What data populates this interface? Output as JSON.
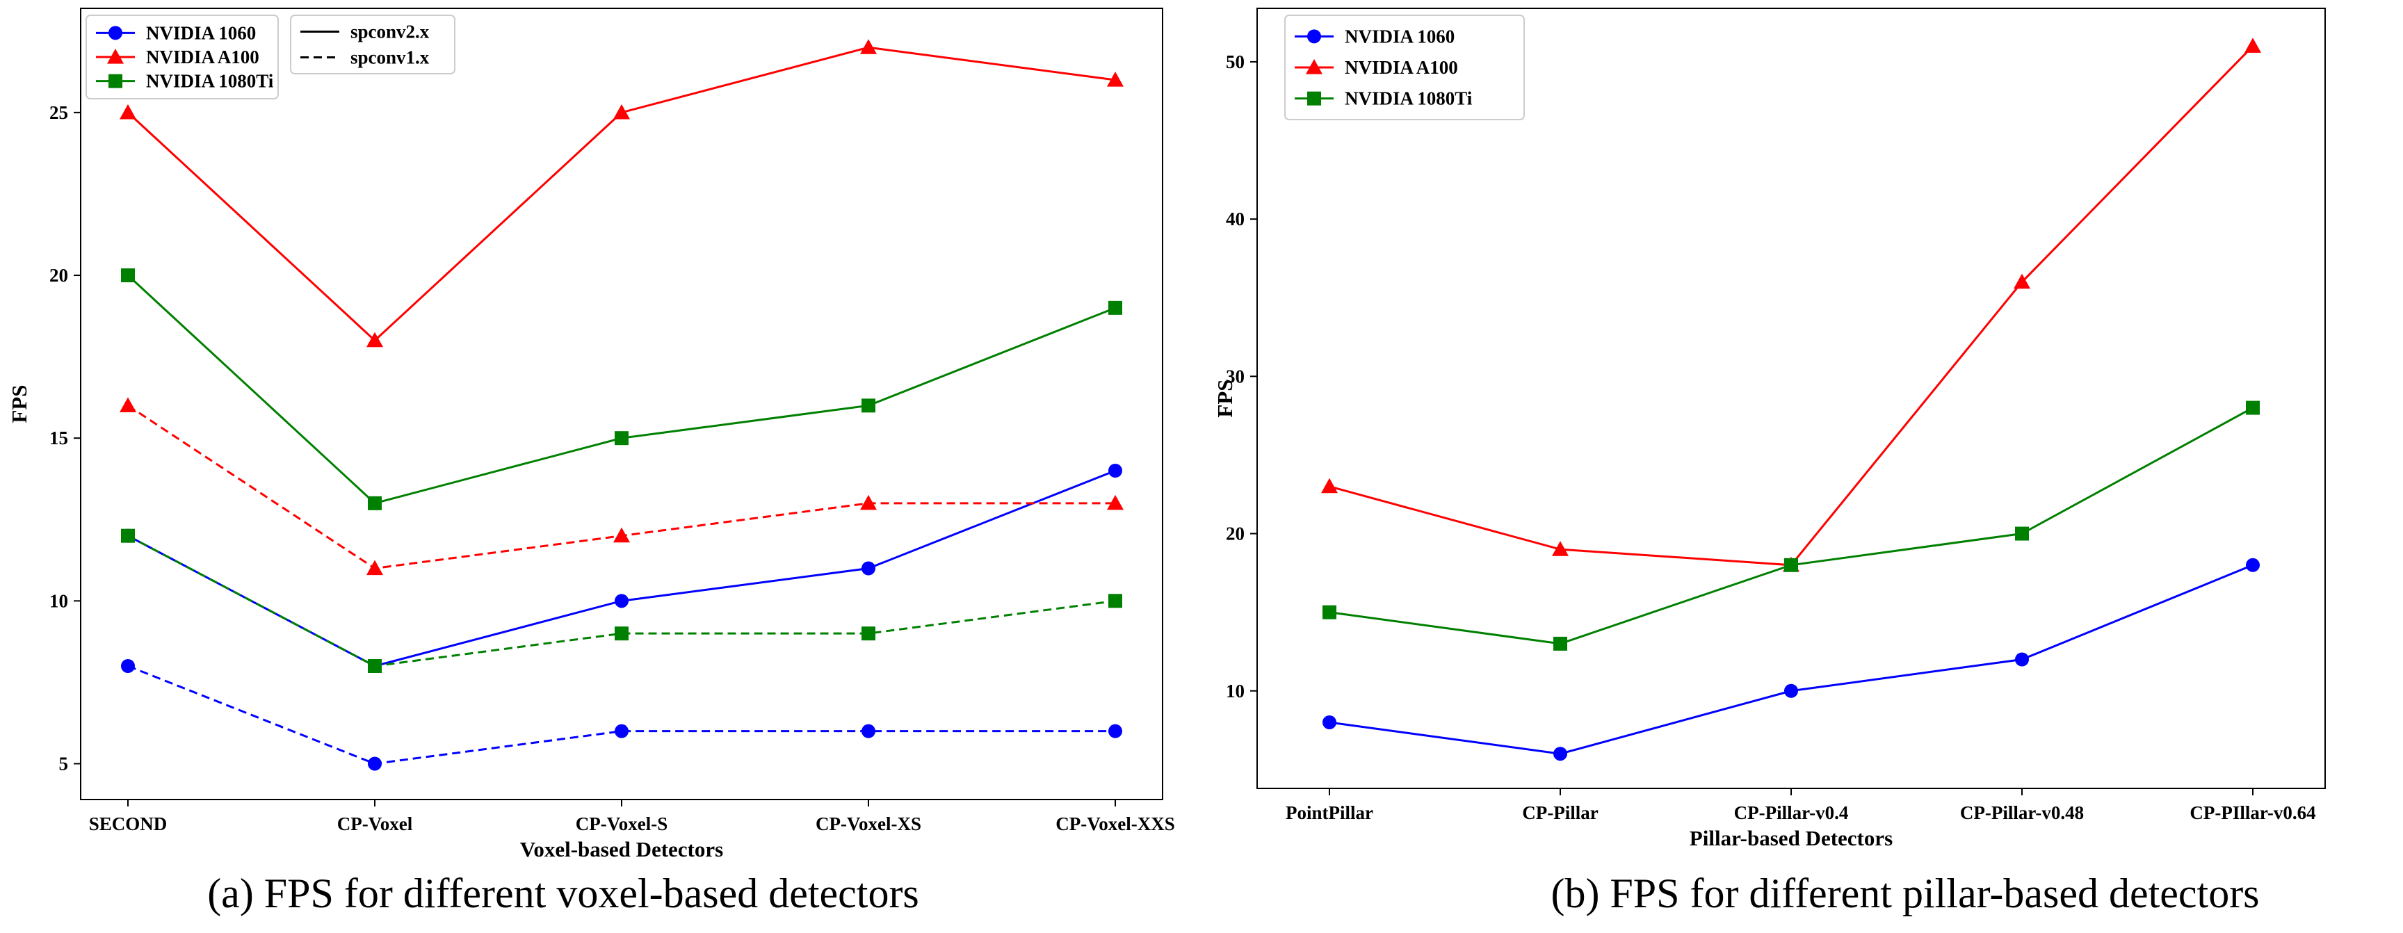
{
  "colors": {
    "series_a": "#0000ff",
    "series_b": "#ff0000",
    "series_c": "#008000"
  },
  "chart_data": [
    {
      "type": "line",
      "title": "",
      "caption": "(a) FPS for different voxel-based detectors",
      "xlabel": "Voxel-based Detectors",
      "ylabel": "FPS",
      "categories": [
        "SECOND",
        "CP-Voxel",
        "CP-Voxel-S",
        "CP-Voxel-XS",
        "CP-Voxel-XXS"
      ],
      "ylim": [
        3.9,
        28.2
      ],
      "yticks": [
        5,
        10,
        15,
        20,
        25
      ],
      "series": [
        {
          "name": "NVIDIA 1060",
          "color": "#0000ff",
          "marker": "circle",
          "linestyle": "solid",
          "values": [
            12,
            8,
            10,
            11,
            14
          ]
        },
        {
          "name": "NVIDIA A100",
          "color": "#ff0000",
          "marker": "triangle",
          "linestyle": "solid",
          "values": [
            25,
            18,
            25,
            27,
            26
          ]
        },
        {
          "name": "NVIDIA 1080Ti",
          "color": "#008000",
          "marker": "square",
          "linestyle": "solid",
          "values": [
            20,
            13,
            15,
            16,
            19
          ]
        },
        {
          "name": "",
          "color": "#0000ff",
          "marker": "circle",
          "linestyle": "dashed",
          "values": [
            8,
            5,
            6,
            6,
            6
          ]
        },
        {
          "name": "",
          "color": "#ff0000",
          "marker": "triangle",
          "linestyle": "dashed",
          "values": [
            16,
            11,
            12,
            13,
            13
          ]
        },
        {
          "name": "",
          "color": "#008000",
          "marker": "square",
          "linestyle": "dashed",
          "values": [
            12,
            8,
            9,
            9,
            10
          ]
        }
      ],
      "legend": [
        {
          "label": "NVIDIA 1060",
          "color": "#0000ff",
          "marker": "circle",
          "linestyle": "solid"
        },
        {
          "label": "NVIDIA A100",
          "color": "#ff0000",
          "marker": "triangle",
          "linestyle": "solid"
        },
        {
          "label": "NVIDIA 1080Ti",
          "color": "#008000",
          "marker": "square",
          "linestyle": "solid"
        }
      ],
      "legend2": [
        {
          "label": "spconv2.x",
          "color": "#000000",
          "marker": "none",
          "linestyle": "solid"
        },
        {
          "label": "spconv1.x",
          "color": "#000000",
          "marker": "none",
          "linestyle": "dashed"
        }
      ],
      "legend_position": "top-left",
      "grid": false
    },
    {
      "type": "line",
      "title": "",
      "caption": "(b) FPS for different pillar-based detectors",
      "xlabel": "Pillar-based Detectors",
      "ylabel": "FPS",
      "categories": [
        "PointPillar",
        "CP-Pillar",
        "CP-Pillar-v0.4",
        "CP-Pillar-v0.48",
        "CP-PIllar-v0.64"
      ],
      "ylim": [
        3.8,
        53.4
      ],
      "yticks": [
        10,
        20,
        30,
        40,
        50
      ],
      "series": [
        {
          "name": "NVIDIA 1060",
          "color": "#0000ff",
          "marker": "circle",
          "linestyle": "solid",
          "values": [
            8,
            6,
            10,
            12,
            18
          ]
        },
        {
          "name": "NVIDIA A100",
          "color": "#ff0000",
          "marker": "triangle",
          "linestyle": "solid",
          "values": [
            23,
            19,
            18,
            36,
            51
          ]
        },
        {
          "name": "NVIDIA 1080Ti",
          "color": "#008000",
          "marker": "square",
          "linestyle": "solid",
          "values": [
            15,
            13,
            18,
            20,
            28
          ]
        }
      ],
      "legend": [
        {
          "label": "NVIDIA 1060",
          "color": "#0000ff",
          "marker": "circle",
          "linestyle": "solid"
        },
        {
          "label": "NVIDIA A100",
          "color": "#ff0000",
          "marker": "triangle",
          "linestyle": "solid"
        },
        {
          "label": "NVIDIA 1080Ti",
          "color": "#008000",
          "marker": "square",
          "linestyle": "solid"
        }
      ],
      "legend_position": "top-left",
      "grid": false
    }
  ]
}
